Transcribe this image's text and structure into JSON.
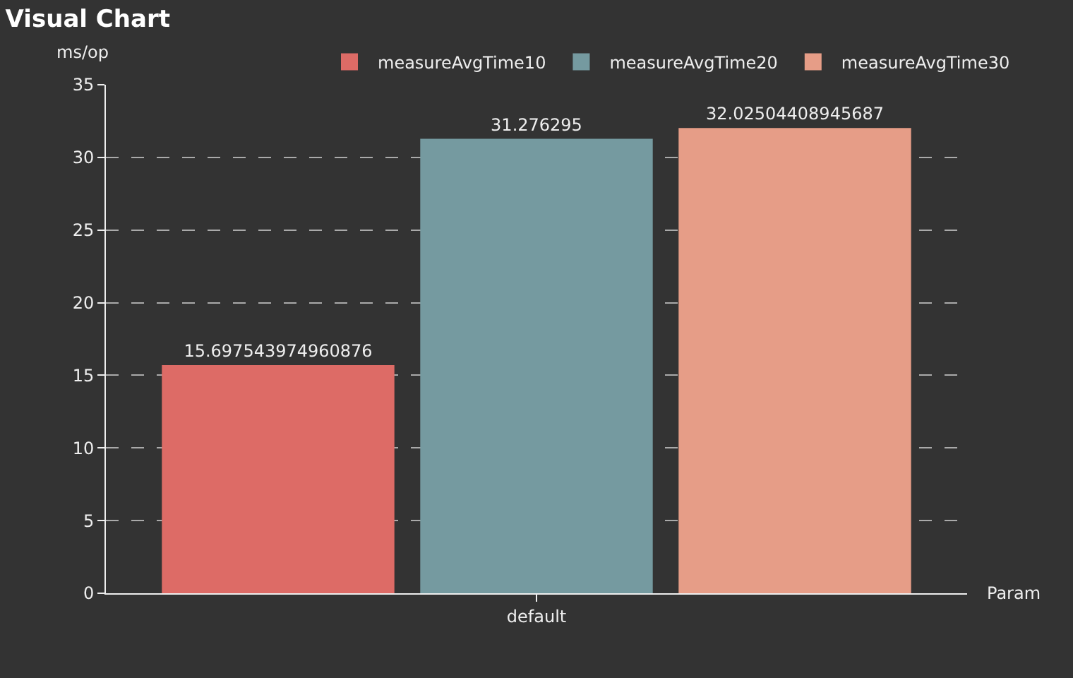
{
  "chart_data": {
    "type": "bar",
    "title": "Visual Chart",
    "xlabel": "Param",
    "ylabel": "ms/op",
    "categories": [
      "default"
    ],
    "series": [
      {
        "name": "measureAvgTime10",
        "color": "#dd6b66",
        "values": [
          15.697543974960876
        ]
      },
      {
        "name": "measureAvgTime20",
        "color": "#759aa0",
        "values": [
          31.276295
        ]
      },
      {
        "name": "measureAvgTime30",
        "color": "#e69d87",
        "values": [
          32.02504408945687
        ]
      }
    ],
    "ylim": [
      0,
      35
    ],
    "yticks": [
      0,
      5,
      10,
      15,
      20,
      25,
      30,
      35
    ],
    "grid": "y",
    "legend": "top",
    "data_labels": true
  }
}
